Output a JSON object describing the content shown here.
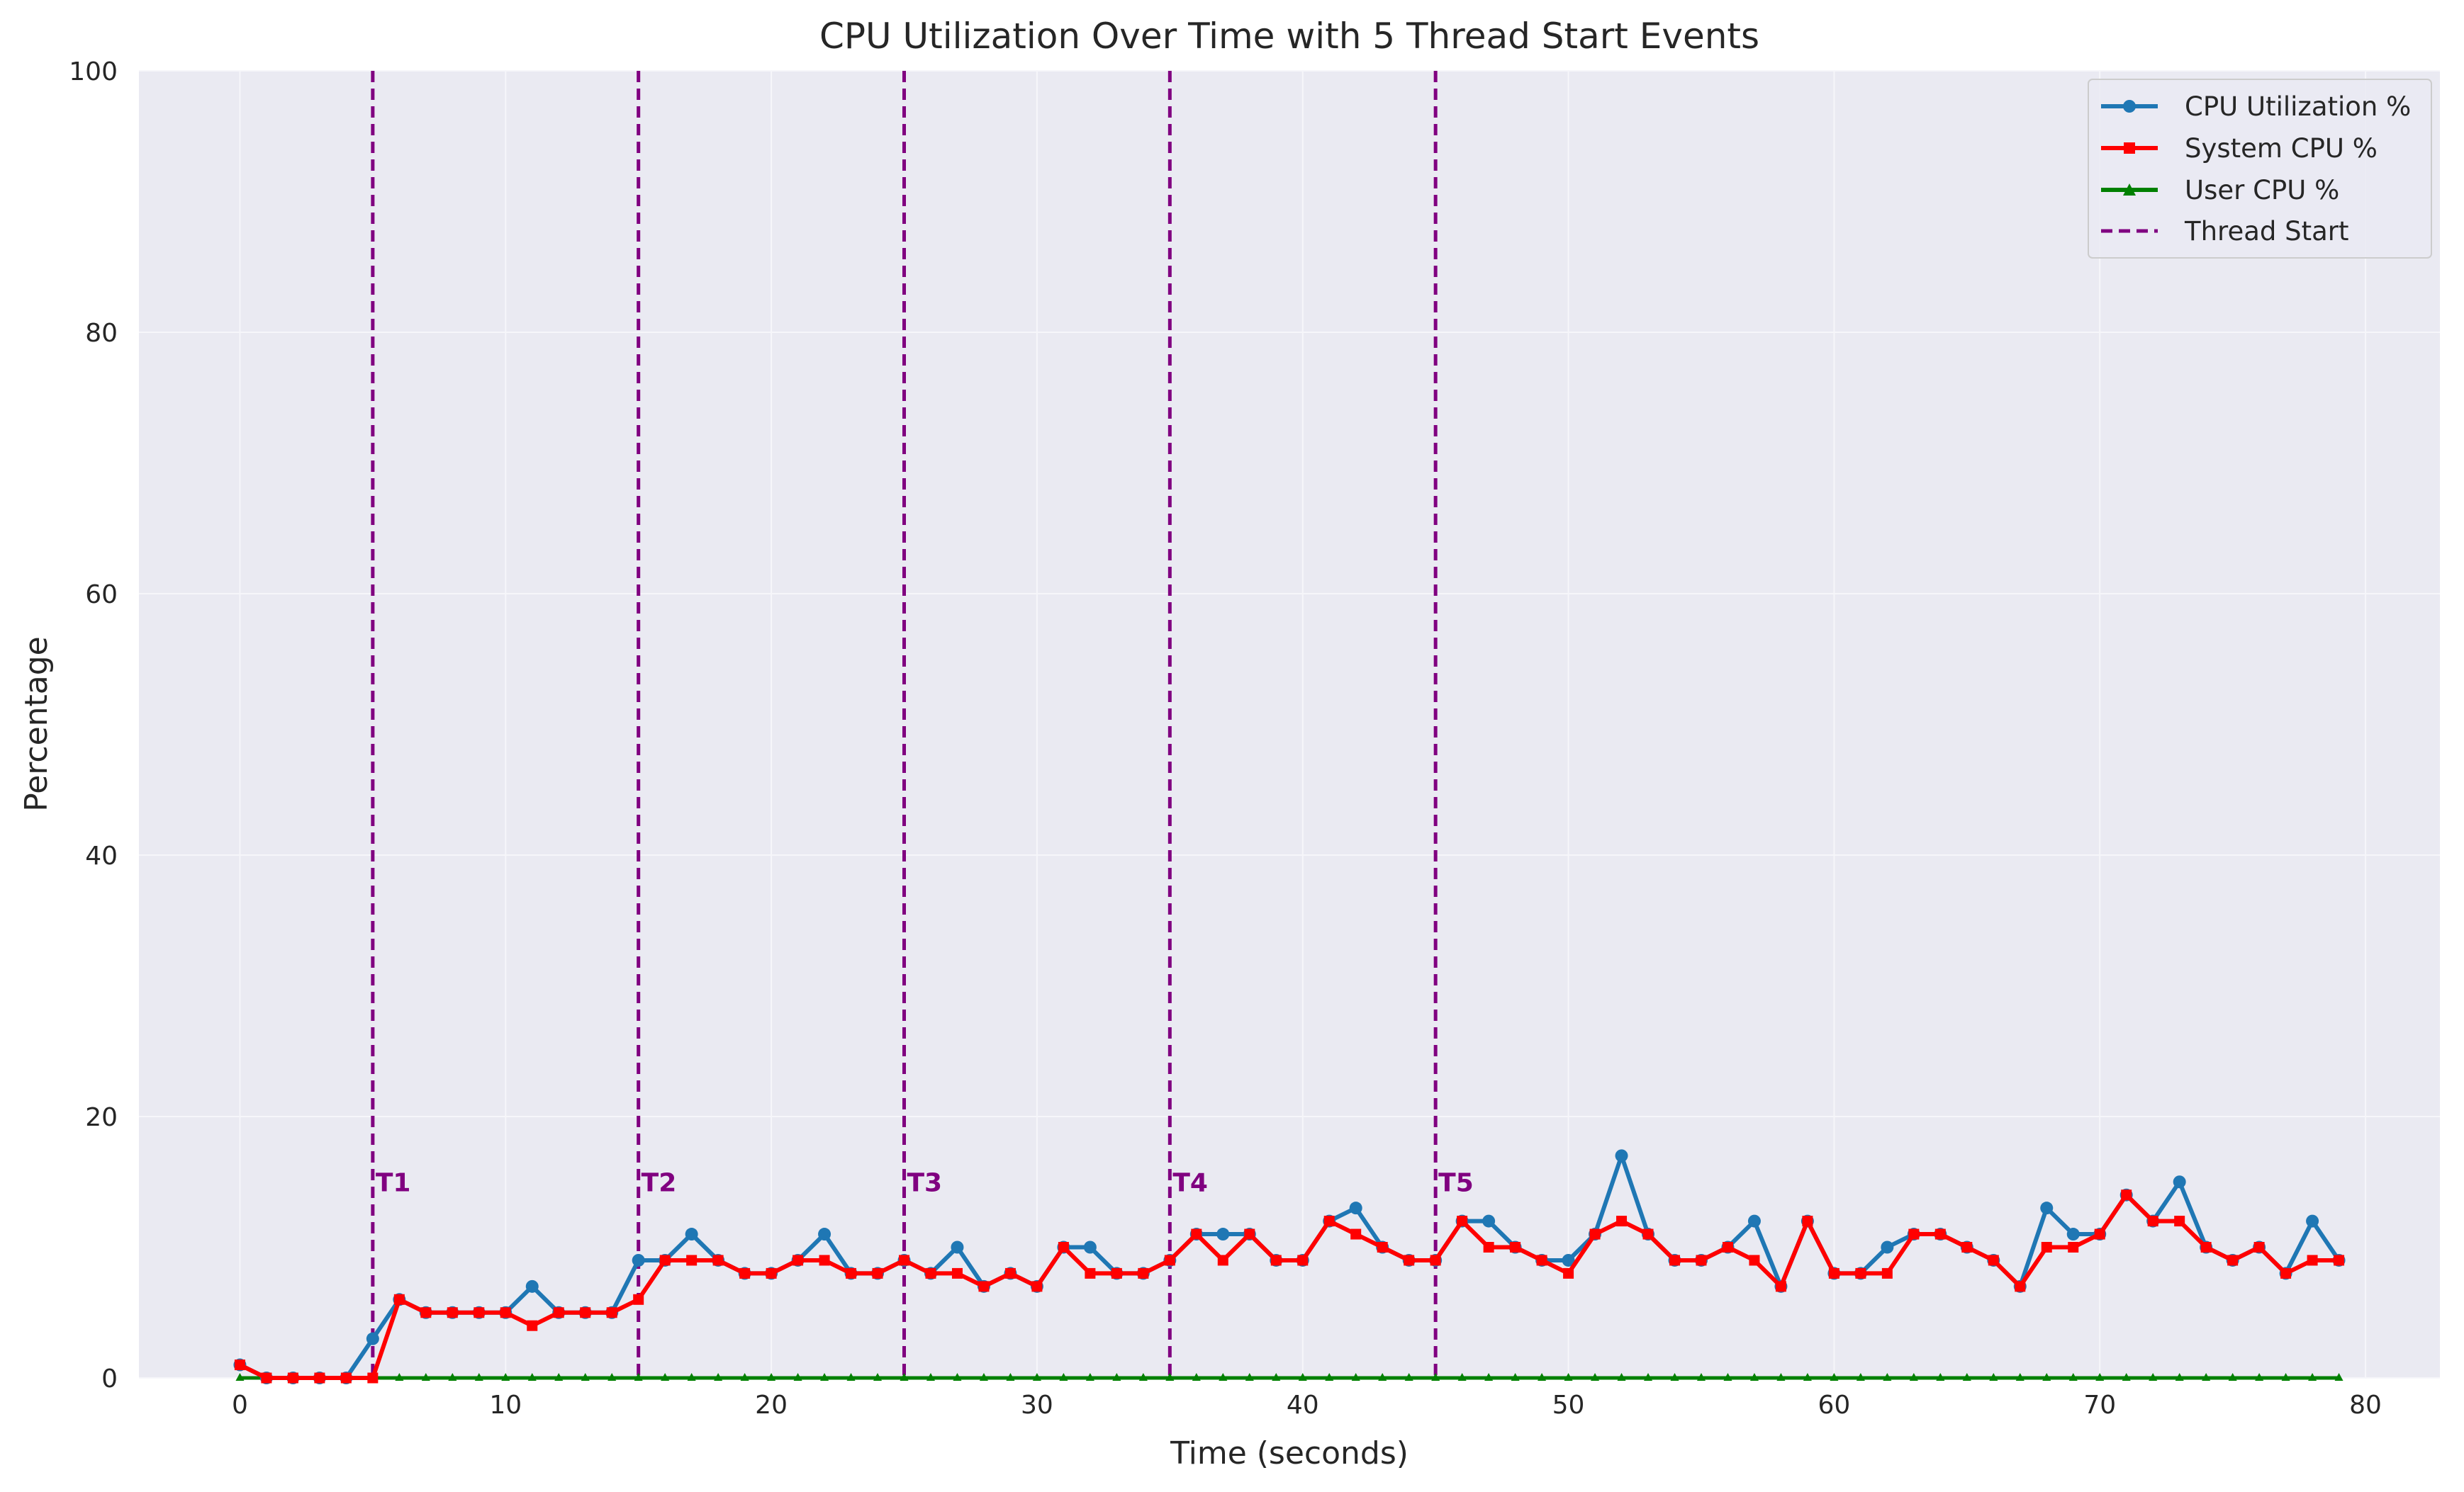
{
  "chart_data": {
    "type": "line",
    "title": "CPU Utilization Over Time with 5 Thread Start Events",
    "xlabel": "Time (seconds)",
    "ylabel": "Percentage",
    "xlim": [
      -3.8,
      82.8
    ],
    "ylim": [
      0,
      100
    ],
    "xticks": [
      0,
      10,
      20,
      30,
      40,
      50,
      60,
      70,
      80
    ],
    "yticks": [
      0,
      20,
      40,
      60,
      80,
      100
    ],
    "grid": true,
    "legend_position": "top-right",
    "series": [
      {
        "name": "CPU Utilization %",
        "color": "#1f77b4",
        "marker": "circle",
        "x": [
          0,
          1,
          2,
          3,
          4,
          5,
          6,
          7,
          8,
          9,
          10,
          11,
          12,
          13,
          14,
          15,
          16,
          17,
          18,
          19,
          20,
          21,
          22,
          23,
          24,
          25,
          26,
          27,
          28,
          29,
          30,
          31,
          32,
          33,
          34,
          35,
          36,
          37,
          38,
          39,
          40,
          41,
          42,
          43,
          44,
          45,
          46,
          47,
          48,
          49,
          50,
          51,
          52,
          53,
          54,
          55,
          56,
          57,
          58,
          59,
          60,
          61,
          62,
          63,
          64,
          65,
          66,
          67,
          68,
          69,
          70,
          71,
          72,
          73,
          74,
          75,
          76,
          77,
          78,
          79
        ],
        "values": [
          1,
          0,
          0,
          0,
          0,
          3,
          6,
          5,
          5,
          5,
          5,
          7,
          5,
          5,
          5,
          9,
          9,
          11,
          9,
          8,
          8,
          9,
          11,
          8,
          8,
          9,
          8,
          10,
          7,
          8,
          7,
          10,
          10,
          8,
          8,
          9,
          11,
          11,
          11,
          9,
          9,
          12,
          13,
          10,
          9,
          9,
          12,
          12,
          10,
          9,
          9,
          11,
          17,
          11,
          9,
          9,
          10,
          12,
          7,
          12,
          8,
          8,
          10,
          11,
          11,
          10,
          9,
          7,
          13,
          11,
          11,
          14,
          12,
          15,
          10,
          9,
          10,
          8,
          12,
          9
        ]
      },
      {
        "name": "System CPU %",
        "color": "#ff0000",
        "marker": "square",
        "x": [
          0,
          1,
          2,
          3,
          4,
          5,
          6,
          7,
          8,
          9,
          10,
          11,
          12,
          13,
          14,
          15,
          16,
          17,
          18,
          19,
          20,
          21,
          22,
          23,
          24,
          25,
          26,
          27,
          28,
          29,
          30,
          31,
          32,
          33,
          34,
          35,
          36,
          37,
          38,
          39,
          40,
          41,
          42,
          43,
          44,
          45,
          46,
          47,
          48,
          49,
          50,
          51,
          52,
          53,
          54,
          55,
          56,
          57,
          58,
          59,
          60,
          61,
          62,
          63,
          64,
          65,
          66,
          67,
          68,
          69,
          70,
          71,
          72,
          73,
          74,
          75,
          76,
          77,
          78,
          79
        ],
        "values": [
          1,
          0,
          0,
          0,
          0,
          0,
          6,
          5,
          5,
          5,
          5,
          4,
          5,
          5,
          5,
          6,
          9,
          9,
          9,
          8,
          8,
          9,
          9,
          8,
          8,
          9,
          8,
          8,
          7,
          8,
          7,
          10,
          8,
          8,
          8,
          9,
          11,
          9,
          11,
          9,
          9,
          12,
          11,
          10,
          9,
          9,
          12,
          10,
          10,
          9,
          8,
          11,
          12,
          11,
          9,
          9,
          10,
          9,
          7,
          12,
          8,
          8,
          8,
          11,
          11,
          10,
          9,
          7,
          10,
          10,
          11,
          14,
          12,
          12,
          10,
          9,
          10,
          8,
          9,
          9
        ]
      },
      {
        "name": "User CPU %",
        "color": "#008000",
        "marker": "triangle",
        "x": [
          0,
          1,
          2,
          3,
          4,
          5,
          6,
          7,
          8,
          9,
          10,
          11,
          12,
          13,
          14,
          15,
          16,
          17,
          18,
          19,
          20,
          21,
          22,
          23,
          24,
          25,
          26,
          27,
          28,
          29,
          30,
          31,
          32,
          33,
          34,
          35,
          36,
          37,
          38,
          39,
          40,
          41,
          42,
          43,
          44,
          45,
          46,
          47,
          48,
          49,
          50,
          51,
          52,
          53,
          54,
          55,
          56,
          57,
          58,
          59,
          60,
          61,
          62,
          63,
          64,
          65,
          66,
          67,
          68,
          69,
          70,
          71,
          72,
          73,
          74,
          75,
          76,
          77,
          78,
          79
        ],
        "values": [
          0,
          0,
          0,
          0,
          0,
          0,
          0,
          0,
          0,
          0,
          0,
          0,
          0,
          0,
          0,
          0,
          0,
          0,
          0,
          0,
          0,
          0,
          0,
          0,
          0,
          0,
          0,
          0,
          0,
          0,
          0,
          0,
          0,
          0,
          0,
          0,
          0,
          0,
          0,
          0,
          0,
          0,
          0,
          0,
          0,
          0,
          0,
          0,
          0,
          0,
          0,
          0,
          0,
          0,
          0,
          0,
          0,
          0,
          0,
          0,
          0,
          0,
          0,
          0,
          0,
          0,
          0,
          0,
          0,
          0,
          0,
          0,
          0,
          0,
          0,
          0,
          0,
          0,
          0,
          0
        ]
      }
    ],
    "events": {
      "name": "Thread Start",
      "color": "#800080",
      "x": [
        5,
        15,
        25,
        35,
        45
      ],
      "labels": [
        "T1",
        "T2",
        "T3",
        "T4",
        "T5"
      ],
      "label_y": 15
    }
  }
}
